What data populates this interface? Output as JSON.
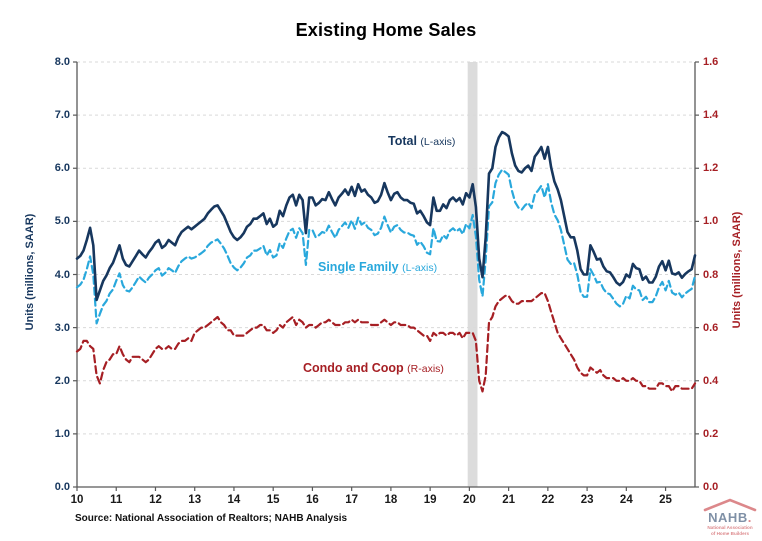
{
  "title": "Existing Home Sales",
  "source": "Source: National Association of Realtors; NAHB Analysis",
  "logo": {
    "word": "NAHB",
    "dot": ".",
    "subtitle_line1": "National Association",
    "subtitle_line2": "of Home Builders",
    "roof_color": "#C0272D",
    "word_color": "#17375E"
  },
  "left_axis": {
    "title": "Units (millions, SAAR)",
    "color": "#17375E",
    "tick_labels": [
      "0.0",
      "1.0",
      "2.0",
      "3.0",
      "4.0",
      "5.0",
      "6.0",
      "7.0",
      "8.0"
    ]
  },
  "right_axis": {
    "title": "Units (millions, SAAR)",
    "color": "#A61F24",
    "tick_labels": [
      "0.0",
      "0.2",
      "0.4",
      "0.6",
      "0.8",
      "1.0",
      "1.2",
      "1.4",
      "1.6"
    ]
  },
  "x_axis": {
    "tick_labels": [
      "10",
      "11",
      "12",
      "13",
      "14",
      "15",
      "16",
      "17",
      "18",
      "19",
      "20",
      "21",
      "22",
      "23",
      "24",
      "25"
    ]
  },
  "chart_data": {
    "type": "line",
    "title": "Existing Home Sales",
    "x_start": "2010-01",
    "x_end": "2025-10",
    "frequency": "monthly",
    "left_ylim": [
      0,
      8
    ],
    "right_ylim": [
      0,
      1.6
    ],
    "grid": "horizontal-dashed",
    "gridline_color": "#D9D9D9",
    "axis_line_color": "#595959",
    "recession_band": {
      "start_index": 119.5,
      "end_index": 122.5,
      "color": "#DCDCDC"
    },
    "series": [
      {
        "name": "Total",
        "label": "Total",
        "label_suffix": "(L-axis)",
        "axis": "left",
        "style": "solid",
        "color": "#17375E",
        "values": [
          4.3,
          4.35,
          4.45,
          4.65,
          4.88,
          4.55,
          3.52,
          3.7,
          3.88,
          3.98,
          4.12,
          4.22,
          4.38,
          4.55,
          4.3,
          4.18,
          4.15,
          4.25,
          4.35,
          4.45,
          4.38,
          4.32,
          4.42,
          4.5,
          4.6,
          4.65,
          4.5,
          4.55,
          4.65,
          4.6,
          4.55,
          4.7,
          4.8,
          4.85,
          4.9,
          4.85,
          4.9,
          4.95,
          5.0,
          5.05,
          5.15,
          5.22,
          5.28,
          5.3,
          5.2,
          5.1,
          4.95,
          4.8,
          4.7,
          4.65,
          4.7,
          4.78,
          4.9,
          4.95,
          5.05,
          5.05,
          5.1,
          5.15,
          4.95,
          5.05,
          4.9,
          4.95,
          5.2,
          5.1,
          5.3,
          5.45,
          5.5,
          5.3,
          5.5,
          5.4,
          4.78,
          5.45,
          5.45,
          5.3,
          5.35,
          5.42,
          5.4,
          5.55,
          5.42,
          5.3,
          5.45,
          5.52,
          5.6,
          5.5,
          5.65,
          5.48,
          5.7,
          5.56,
          5.6,
          5.5,
          5.45,
          5.35,
          5.38,
          5.5,
          5.72,
          5.55,
          5.4,
          5.52,
          5.55,
          5.45,
          5.4,
          5.4,
          5.35,
          5.33,
          5.15,
          5.2,
          5.1,
          4.98,
          4.93,
          5.45,
          5.2,
          5.2,
          5.32,
          5.25,
          5.4,
          5.45,
          5.38,
          5.44,
          5.32,
          5.53,
          5.45,
          5.7,
          5.27,
          4.3,
          3.95,
          4.7,
          5.9,
          6.0,
          6.4,
          6.58,
          6.68,
          6.65,
          6.6,
          6.28,
          6.05,
          5.95,
          5.92,
          6.0,
          6.05,
          5.95,
          6.22,
          6.3,
          6.4,
          6.18,
          6.4,
          6.02,
          5.75,
          5.6,
          5.4,
          5.1,
          4.8,
          4.7,
          4.7,
          4.45,
          4.1,
          4.0,
          4.0,
          4.55,
          4.43,
          4.28,
          4.3,
          4.15,
          4.06,
          4.04,
          3.95,
          3.85,
          3.8,
          3.86,
          4.0,
          3.95,
          4.2,
          4.12,
          4.1,
          3.9,
          3.96,
          3.85,
          3.85,
          3.96,
          4.15,
          4.25,
          4.08,
          4.26,
          4.02,
          4.0,
          4.04,
          3.94,
          4.01,
          4.06,
          4.1,
          4.36
        ]
      },
      {
        "name": "Single Family",
        "label": "Single Family",
        "label_suffix": "(L-axis)",
        "axis": "left",
        "style": "dashed",
        "color": "#29A8DC",
        "values": [
          3.76,
          3.81,
          3.9,
          4.1,
          4.34,
          4.0,
          3.08,
          3.26,
          3.42,
          3.5,
          3.64,
          3.72,
          3.88,
          4.02,
          3.8,
          3.7,
          3.68,
          3.76,
          3.86,
          3.96,
          3.9,
          3.85,
          3.94,
          4.0,
          4.08,
          4.12,
          3.98,
          4.03,
          4.12,
          4.08,
          4.03,
          4.16,
          4.25,
          4.3,
          4.34,
          4.3,
          4.32,
          4.36,
          4.4,
          4.45,
          4.54,
          4.6,
          4.63,
          4.66,
          4.58,
          4.49,
          4.36,
          4.21,
          4.13,
          4.08,
          4.13,
          4.21,
          4.32,
          4.36,
          4.45,
          4.45,
          4.49,
          4.54,
          4.36,
          4.46,
          4.32,
          4.36,
          4.59,
          4.5,
          4.68,
          4.82,
          4.86,
          4.69,
          4.87,
          4.78,
          4.18,
          4.84,
          4.84,
          4.7,
          4.74,
          4.8,
          4.78,
          4.92,
          4.8,
          4.69,
          4.84,
          4.91,
          4.98,
          4.88,
          5.02,
          4.86,
          5.07,
          4.94,
          4.98,
          4.88,
          4.84,
          4.74,
          4.77,
          4.88,
          5.09,
          4.93,
          4.79,
          4.9,
          4.93,
          4.84,
          4.79,
          4.79,
          4.75,
          4.73,
          4.56,
          4.62,
          4.53,
          4.41,
          4.38,
          4.87,
          4.63,
          4.62,
          4.74,
          4.68,
          4.82,
          4.87,
          4.81,
          4.86,
          4.76,
          4.95,
          4.87,
          5.12,
          4.72,
          3.9,
          3.59,
          4.28,
          5.28,
          5.36,
          5.72,
          5.88,
          5.97,
          5.93,
          5.88,
          5.58,
          5.36,
          5.26,
          5.22,
          5.3,
          5.35,
          5.25,
          5.51,
          5.58,
          5.67,
          5.45,
          5.7,
          5.36,
          5.13,
          5.02,
          4.84,
          4.56,
          4.28,
          4.2,
          4.22,
          4.0,
          3.67,
          3.58,
          3.58,
          4.1,
          3.99,
          3.85,
          3.86,
          3.73,
          3.65,
          3.63,
          3.54,
          3.45,
          3.4,
          3.45,
          3.6,
          3.55,
          3.79,
          3.72,
          3.7,
          3.52,
          3.58,
          3.48,
          3.48,
          3.59,
          3.76,
          3.86,
          3.7,
          3.88,
          3.66,
          3.62,
          3.66,
          3.57,
          3.64,
          3.69,
          3.73,
          3.97
        ]
      },
      {
        "name": "Condo and Coop",
        "label": "Condo and Coop",
        "label_suffix": "(R-axis)",
        "axis": "right",
        "style": "dashed",
        "color": "#A61F24",
        "values": [
          0.51,
          0.52,
          0.55,
          0.55,
          0.53,
          0.52,
          0.42,
          0.39,
          0.44,
          0.47,
          0.48,
          0.5,
          0.5,
          0.53,
          0.5,
          0.48,
          0.47,
          0.49,
          0.49,
          0.49,
          0.48,
          0.47,
          0.48,
          0.5,
          0.52,
          0.53,
          0.52,
          0.52,
          0.53,
          0.52,
          0.52,
          0.54,
          0.55,
          0.55,
          0.56,
          0.55,
          0.58,
          0.59,
          0.6,
          0.6,
          0.61,
          0.62,
          0.63,
          0.64,
          0.62,
          0.61,
          0.59,
          0.59,
          0.57,
          0.57,
          0.57,
          0.57,
          0.58,
          0.59,
          0.6,
          0.6,
          0.61,
          0.61,
          0.59,
          0.59,
          0.58,
          0.59,
          0.61,
          0.6,
          0.62,
          0.63,
          0.64,
          0.61,
          0.63,
          0.62,
          0.6,
          0.61,
          0.61,
          0.6,
          0.61,
          0.62,
          0.62,
          0.63,
          0.62,
          0.61,
          0.61,
          0.61,
          0.62,
          0.62,
          0.63,
          0.62,
          0.63,
          0.62,
          0.62,
          0.62,
          0.61,
          0.61,
          0.61,
          0.62,
          0.63,
          0.62,
          0.61,
          0.62,
          0.62,
          0.61,
          0.61,
          0.61,
          0.6,
          0.6,
          0.59,
          0.58,
          0.57,
          0.57,
          0.55,
          0.58,
          0.57,
          0.58,
          0.58,
          0.57,
          0.58,
          0.58,
          0.57,
          0.58,
          0.56,
          0.58,
          0.58,
          0.58,
          0.55,
          0.4,
          0.36,
          0.42,
          0.62,
          0.64,
          0.68,
          0.7,
          0.71,
          0.72,
          0.72,
          0.7,
          0.69,
          0.69,
          0.7,
          0.7,
          0.7,
          0.7,
          0.71,
          0.72,
          0.73,
          0.73,
          0.7,
          0.66,
          0.62,
          0.58,
          0.56,
          0.54,
          0.52,
          0.5,
          0.48,
          0.45,
          0.43,
          0.42,
          0.42,
          0.45,
          0.44,
          0.43,
          0.44,
          0.42,
          0.41,
          0.41,
          0.41,
          0.4,
          0.4,
          0.41,
          0.4,
          0.4,
          0.41,
          0.4,
          0.4,
          0.38,
          0.38,
          0.37,
          0.37,
          0.37,
          0.39,
          0.39,
          0.38,
          0.38,
          0.36,
          0.38,
          0.38,
          0.37,
          0.37,
          0.37,
          0.37,
          0.39
        ]
      }
    ]
  }
}
